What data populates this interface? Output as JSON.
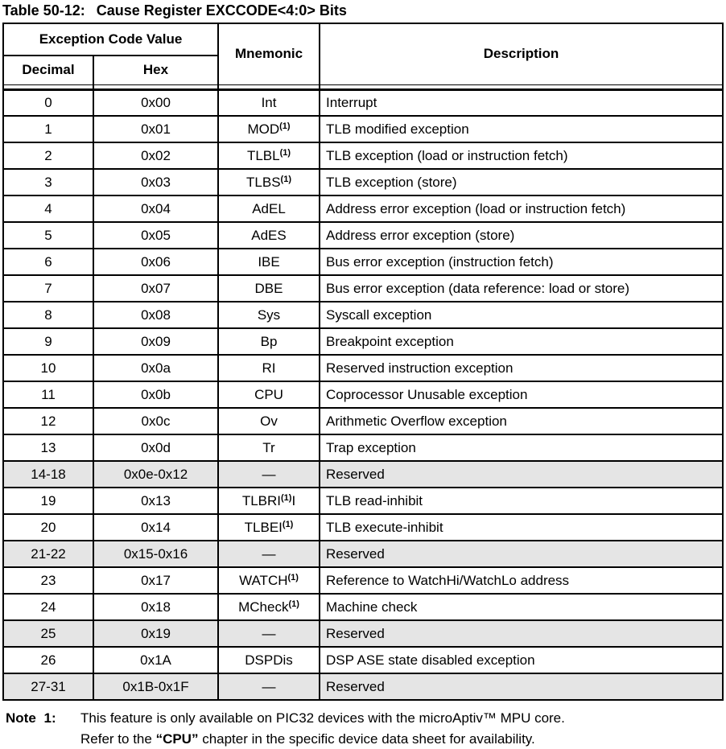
{
  "title": {
    "label": "Table 50-12:",
    "text": "Cause Register EXCCODE<4:0> Bits"
  },
  "table": {
    "headers": {
      "exception_code_value": "Exception Code Value",
      "decimal": "Decimal",
      "hex": "Hex",
      "mnemonic": "Mnemonic",
      "description": "Description"
    },
    "rows": [
      {
        "decimal": "0",
        "hex": "0x00",
        "mnemonic": "Int",
        "sup": "",
        "after": "",
        "description": "Interrupt",
        "shaded": false
      },
      {
        "decimal": "1",
        "hex": "0x01",
        "mnemonic": "MOD",
        "sup": "(1)",
        "after": "",
        "description": "TLB modified exception",
        "shaded": false
      },
      {
        "decimal": "2",
        "hex": "0x02",
        "mnemonic": "TLBL",
        "sup": "(1)",
        "after": "",
        "description": "TLB exception (load or instruction fetch)",
        "shaded": false
      },
      {
        "decimal": "3",
        "hex": "0x03",
        "mnemonic": "TLBS",
        "sup": "(1)",
        "after": "",
        "description": "TLB exception (store)",
        "shaded": false
      },
      {
        "decimal": "4",
        "hex": "0x04",
        "mnemonic": "AdEL",
        "sup": "",
        "after": "",
        "description": "Address error exception (load or instruction fetch)",
        "shaded": false
      },
      {
        "decimal": "5",
        "hex": "0x05",
        "mnemonic": "AdES",
        "sup": "",
        "after": "",
        "description": "Address error exception (store)",
        "shaded": false
      },
      {
        "decimal": "6",
        "hex": "0x06",
        "mnemonic": "IBE",
        "sup": "",
        "after": "",
        "description": "Bus error exception (instruction fetch)",
        "shaded": false
      },
      {
        "decimal": "7",
        "hex": "0x07",
        "mnemonic": "DBE",
        "sup": "",
        "after": "",
        "description": "Bus error exception (data reference: load or store)",
        "shaded": false
      },
      {
        "decimal": "8",
        "hex": "0x08",
        "mnemonic": "Sys",
        "sup": "",
        "after": "",
        "description": "Syscall exception",
        "shaded": false
      },
      {
        "decimal": "9",
        "hex": "0x09",
        "mnemonic": "Bp",
        "sup": "",
        "after": "",
        "description": "Breakpoint exception",
        "shaded": false
      },
      {
        "decimal": "10",
        "hex": "0x0a",
        "mnemonic": "RI",
        "sup": "",
        "after": "",
        "description": "Reserved instruction exception",
        "shaded": false
      },
      {
        "decimal": "11",
        "hex": "0x0b",
        "mnemonic": "CPU",
        "sup": "",
        "after": "",
        "description": "Coprocessor Unusable exception",
        "shaded": false
      },
      {
        "decimal": "12",
        "hex": "0x0c",
        "mnemonic": "Ov",
        "sup": "",
        "after": "",
        "description": "Arithmetic Overflow exception",
        "shaded": false
      },
      {
        "decimal": "13",
        "hex": "0x0d",
        "mnemonic": "Tr",
        "sup": "",
        "after": "",
        "description": "Trap exception",
        "shaded": false
      },
      {
        "decimal": "14-18",
        "hex": "0x0e-0x12",
        "mnemonic": "—",
        "sup": "",
        "after": "",
        "description": "Reserved",
        "shaded": true
      },
      {
        "decimal": "19",
        "hex": "0x13",
        "mnemonic": "TLBRI",
        "sup": "(1)",
        "after": "I",
        "description": "TLB read-inhibit",
        "shaded": false
      },
      {
        "decimal": "20",
        "hex": "0x14",
        "mnemonic": "TLBEI",
        "sup": "(1)",
        "after": "",
        "description": "TLB execute-inhibit",
        "shaded": false
      },
      {
        "decimal": "21-22",
        "hex": "0x15-0x16",
        "mnemonic": "—",
        "sup": "",
        "after": "",
        "description": "Reserved",
        "shaded": true
      },
      {
        "decimal": "23",
        "hex": "0x17",
        "mnemonic": "WATCH",
        "sup": "(1)",
        "after": "",
        "description": "Reference to WatchHi/WatchLo address",
        "shaded": false
      },
      {
        "decimal": "24",
        "hex": "0x18",
        "mnemonic": "MCheck",
        "sup": "(1)",
        "after": "",
        "description": "Machine check",
        "shaded": false
      },
      {
        "decimal": "25",
        "hex": "0x19",
        "mnemonic": "—",
        "sup": "",
        "after": "",
        "description": "Reserved",
        "shaded": true
      },
      {
        "decimal": "26",
        "hex": "0x1A",
        "mnemonic": "DSPDis",
        "sup": "",
        "after": "",
        "description": "DSP ASE state disabled exception",
        "shaded": false
      },
      {
        "decimal": "27-31",
        "hex": "0x1B-0x1F",
        "mnemonic": "—",
        "sup": "",
        "after": "",
        "description": "Reserved",
        "shaded": true
      }
    ]
  },
  "note": {
    "label": "Note 1:",
    "line1": "This feature is only available on PIC32 devices with the microAptiv™ MPU core.",
    "line2_prefix": "Refer to the ",
    "line2_bold": "“CPU”",
    "line2_suffix": " chapter in the specific device data sheet for availability."
  },
  "colors": {
    "shaded_row": "#e5e5e5",
    "border": "#000000",
    "text": "#000000",
    "background": "#ffffff"
  }
}
